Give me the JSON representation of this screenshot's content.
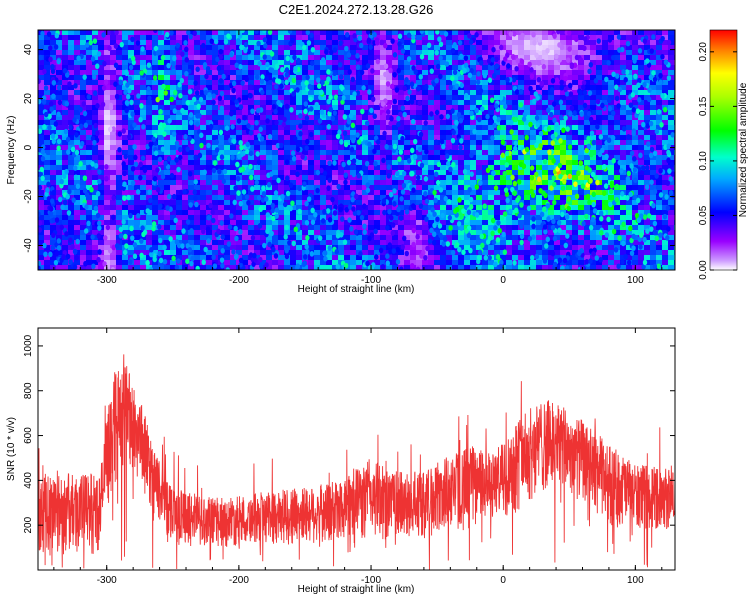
{
  "title": "C2E1.2024.272.13.28.G26",
  "chart_data": [
    {
      "type": "heatmap",
      "xlabel": "Height of straight line (km)",
      "ylabel": "Frequency (Hz)",
      "xlim": [
        -352,
        130
      ],
      "ylim": [
        -50,
        48
      ],
      "xticks": [
        -300,
        -200,
        -100,
        0,
        100
      ],
      "yticks": [
        -40,
        -20,
        0,
        20,
        40
      ],
      "colorbar": {
        "label": "Normalized spectral amplitude",
        "range": [
          0.0,
          0.22
        ],
        "ticks": [
          "0.00",
          "0.05",
          "0.10",
          "0.15",
          "0.20"
        ]
      },
      "features": [
        {
          "description": "diffuse spectral band",
          "x_range": [
            -300,
            -290
          ],
          "amplitude": "low"
        },
        {
          "description": "strong scattered power",
          "x_range": [
            -40,
            100
          ],
          "freq_range": [
            -35,
            15
          ],
          "amplitude": 0.11
        },
        {
          "description": "weak region",
          "x_range": [
            -40,
            100
          ],
          "freq_range": [
            25,
            48
          ],
          "amplitude": 0.01
        }
      ]
    },
    {
      "type": "line",
      "xlabel": "Height of straight line (km)",
      "ylabel": "SNR (10 * v/v)",
      "xlim": [
        -352,
        130
      ],
      "ylim": [
        0,
        1080
      ],
      "xticks": [
        -300,
        -200,
        -100,
        0,
        100
      ],
      "yticks": [
        200,
        400,
        600,
        800,
        1000
      ],
      "color": "#ee3333",
      "envelope_x": [
        -352,
        -320,
        -305,
        -300,
        -295,
        -285,
        -275,
        -265,
        -255,
        -245,
        -230,
        -210,
        -190,
        -170,
        -150,
        -130,
        -110,
        -100,
        -80,
        -60,
        -40,
        -25,
        -10,
        0,
        10,
        20,
        30,
        40,
        50,
        60,
        70,
        80,
        90,
        100,
        110,
        120,
        130
      ],
      "envelope_low": [
        70,
        70,
        70,
        250,
        380,
        440,
        380,
        250,
        150,
        110,
        100,
        100,
        110,
        110,
        110,
        110,
        120,
        130,
        130,
        130,
        150,
        180,
        200,
        220,
        250,
        300,
        340,
        360,
        330,
        290,
        240,
        200,
        180,
        170,
        170,
        180,
        170
      ],
      "envelope_high": [
        430,
        430,
        440,
        680,
        870,
        920,
        780,
        560,
        420,
        360,
        330,
        320,
        340,
        360,
        370,
        390,
        460,
        500,
        440,
        440,
        520,
        560,
        520,
        570,
        680,
        720,
        760,
        760,
        700,
        670,
        620,
        560,
        520,
        470,
        470,
        460,
        440
      ]
    }
  ]
}
